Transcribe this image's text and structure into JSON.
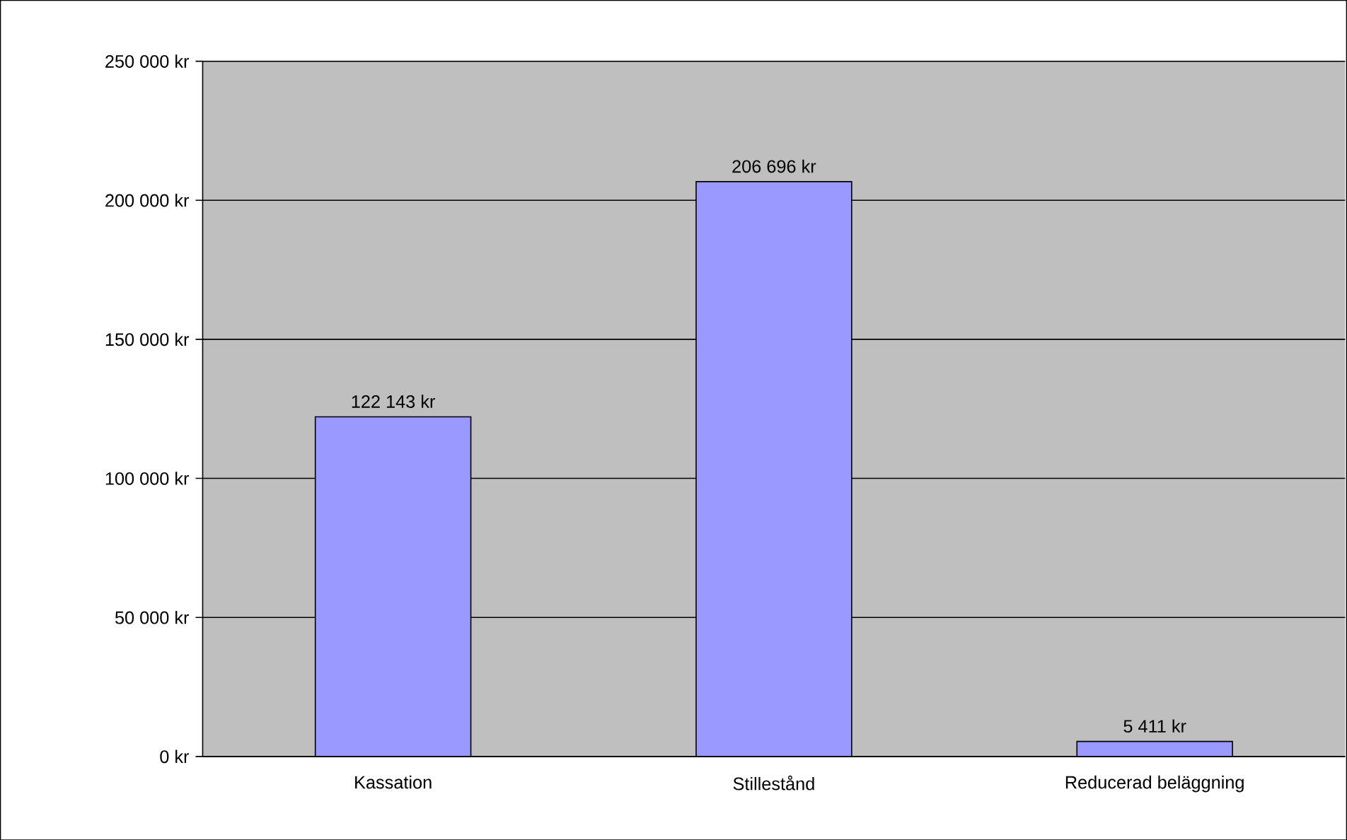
{
  "chart_data": {
    "type": "bar",
    "categories": [
      "Kassation",
      "Stillestånd",
      "Reducerad beläggning"
    ],
    "values": [
      122143,
      206696,
      5411
    ],
    "value_labels": [
      "122 143 kr",
      "206 696 kr",
      "5 411 kr"
    ],
    "color": "#9999ff",
    "ylim": [
      0,
      250000
    ],
    "yticks": [
      {
        "value": 0,
        "label": "0 kr"
      },
      {
        "value": 50000,
        "label": "50 000 kr"
      },
      {
        "value": 100000,
        "label": "100 000 kr"
      },
      {
        "value": 150000,
        "label": "150 000 kr"
      },
      {
        "value": 200000,
        "label": "200 000 kr"
      },
      {
        "value": 250000,
        "label": "250 000 kr"
      }
    ],
    "grid": "y"
  }
}
